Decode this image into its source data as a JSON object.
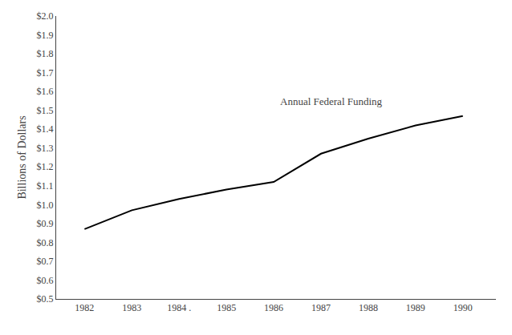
{
  "chart_data": {
    "type": "line",
    "x": [
      1982,
      1983,
      1984,
      1985,
      1986,
      1987,
      1988,
      1989,
      1990
    ],
    "values": [
      0.87,
      0.97,
      1.03,
      1.08,
      1.12,
      1.27,
      1.35,
      1.42,
      1.47
    ],
    "color": "#000000",
    "ylabel": "Billions of Dollars",
    "annotation": "Annual Federal Funding",
    "xlim": [
      1981.4,
      1990.7
    ],
    "ylim": [
      0.5,
      2.0
    ],
    "xticks": [
      1982,
      1983,
      {
        "value": 1984,
        "label": "1984 ."
      },
      1985,
      1986,
      1987,
      1988,
      1989,
      1990
    ],
    "yticks": [
      {
        "value": 0.5,
        "label": "$0.5"
      },
      {
        "value": 0.6,
        "label": "$0.6"
      },
      {
        "value": 0.7,
        "label": "$0.7"
      },
      {
        "value": 0.8,
        "label": "$0.8"
      },
      {
        "value": 0.9,
        "label": "$0.9"
      },
      {
        "value": 1.0,
        "label": "$1.0"
      },
      {
        "value": 1.1,
        "label": "$1.1"
      },
      {
        "value": 1.2,
        "label": "$1.2"
      },
      {
        "value": 1.3,
        "label": "$1.3"
      },
      {
        "value": 1.4,
        "label": "$1.4"
      },
      {
        "value": 1.5,
        "label": "$1.5"
      },
      {
        "value": 1.6,
        "label": "$1.6"
      },
      {
        "value": 1.7,
        "label": "$1.7"
      },
      {
        "value": 1.8,
        "label": "$1.8"
      },
      {
        "value": 1.9,
        "label": "$1.9"
      },
      {
        "value": 2.0,
        "label": "$2.0"
      }
    ],
    "grid": false
  }
}
